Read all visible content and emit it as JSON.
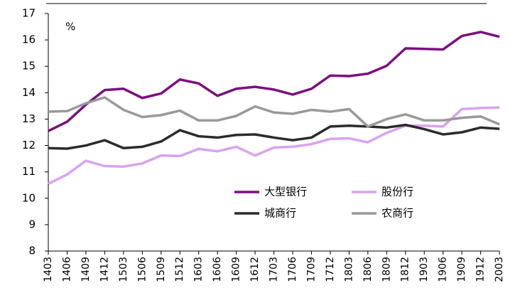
{
  "chart_data": {
    "type": "line",
    "annotation": "%",
    "categories": [
      "1403",
      "1406",
      "1409",
      "1412",
      "1503",
      "1506",
      "1509",
      "1512",
      "1603",
      "1606",
      "1609",
      "1612",
      "1703",
      "1706",
      "1709",
      "1712",
      "1803",
      "1806",
      "1809",
      "1812",
      "1903",
      "1906",
      "1909",
      "1912",
      "2003"
    ],
    "series": [
      {
        "name": "大型银行",
        "color": "#7b0f80",
        "values": [
          12.55,
          12.9,
          13.55,
          14.1,
          14.15,
          13.8,
          13.97,
          14.5,
          14.35,
          13.88,
          14.15,
          14.22,
          14.12,
          13.93,
          14.15,
          14.65,
          14.63,
          14.72,
          15.02,
          15.68,
          15.66,
          15.64,
          16.15,
          16.3,
          16.12
        ]
      },
      {
        "name": "股份行",
        "color": "#d9a2f0",
        "values": [
          10.55,
          10.9,
          11.42,
          11.22,
          11.2,
          11.32,
          11.62,
          11.6,
          11.87,
          11.78,
          11.95,
          11.62,
          11.92,
          11.95,
          12.05,
          12.25,
          12.27,
          12.12,
          12.48,
          12.75,
          12.75,
          12.72,
          13.38,
          13.42,
          13.44
        ]
      },
      {
        "name": "城商行",
        "color": "#2b2b2b",
        "values": [
          11.9,
          11.88,
          12.0,
          12.2,
          11.9,
          11.95,
          12.15,
          12.58,
          12.35,
          12.3,
          12.4,
          12.42,
          12.3,
          12.2,
          12.3,
          12.72,
          12.75,
          12.72,
          12.68,
          12.78,
          12.62,
          12.42,
          12.5,
          12.68,
          12.63
        ]
      },
      {
        "name": "农商行",
        "color": "#999999",
        "values": [
          13.28,
          13.3,
          13.6,
          13.82,
          13.35,
          13.08,
          13.15,
          13.32,
          12.95,
          12.95,
          13.12,
          13.48,
          13.25,
          13.2,
          13.35,
          13.28,
          13.38,
          12.72,
          13.0,
          13.18,
          12.95,
          12.95,
          13.05,
          13.1,
          12.8
        ]
      }
    ],
    "ylim": [
      8,
      17
    ],
    "yticks": [
      8,
      9,
      10,
      11,
      12,
      13,
      14,
      15,
      16,
      17
    ]
  }
}
